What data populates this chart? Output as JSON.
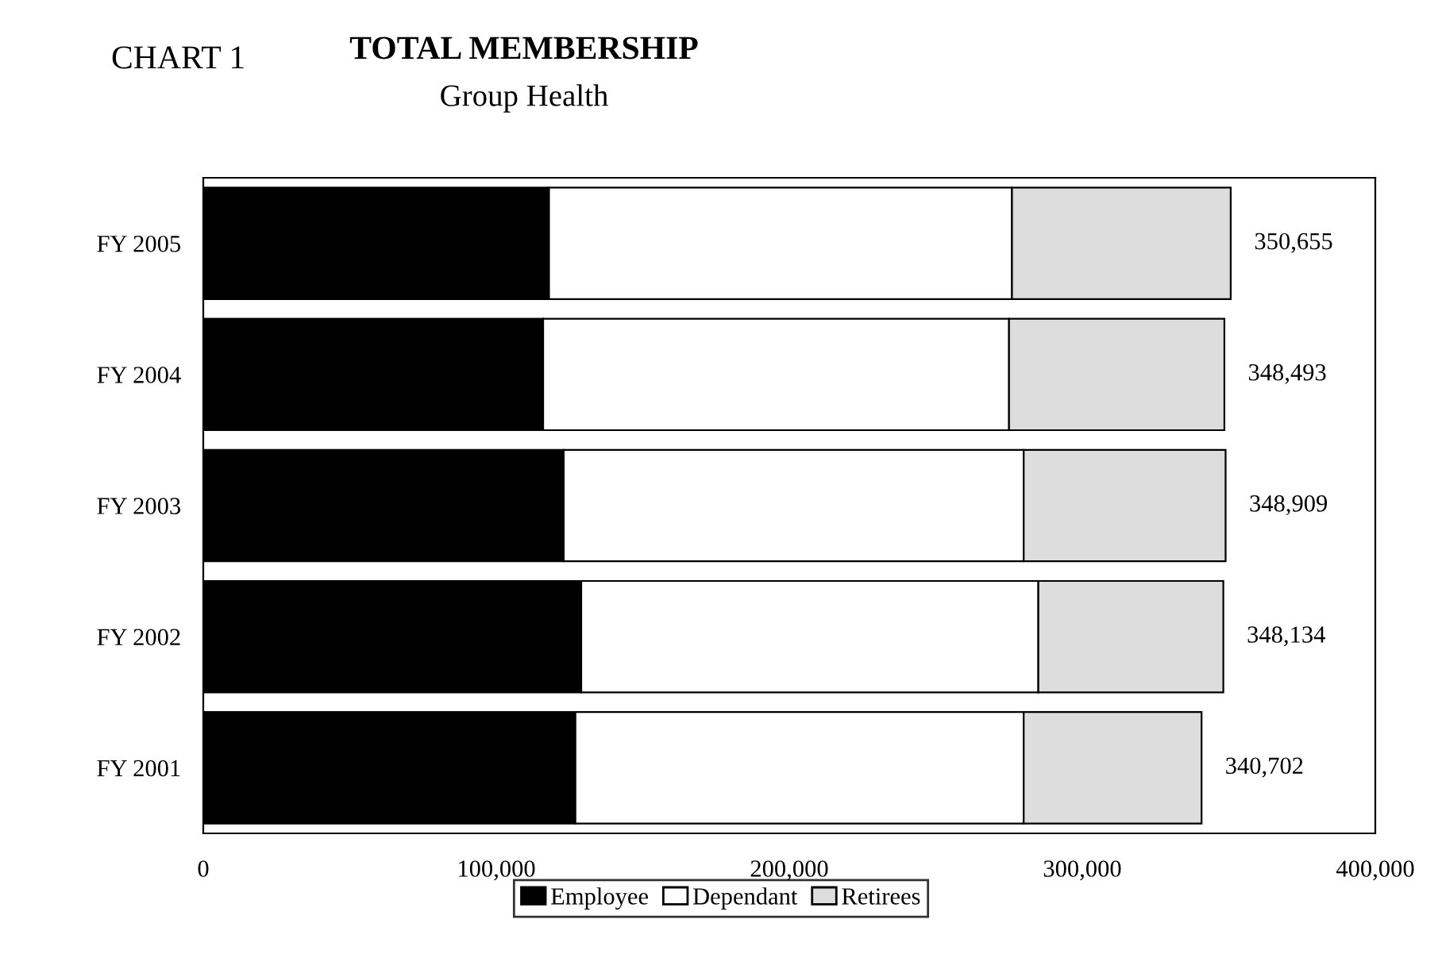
{
  "chart_data": {
    "type": "bar",
    "orientation": "horizontal",
    "stacked": true,
    "title": "TOTAL MEMBERSHIP",
    "subtitle": "Group Health",
    "annotations": [
      "CHART 1"
    ],
    "categories": [
      "FY 2005",
      "FY 2004",
      "FY 2003",
      "FY 2002",
      "FY 2001"
    ],
    "series": [
      {
        "name": "Employee",
        "color": "#000000",
        "values": [
          118000,
          116000,
          123000,
          129000,
          127000
        ]
      },
      {
        "name": "Dependant",
        "color": "#ffffff",
        "values": [
          158000,
          159000,
          157000,
          156000,
          153000
        ]
      },
      {
        "name": "Retirees",
        "color": "#dddddd",
        "values": [
          74655,
          73493,
          68909,
          63134,
          60702
        ]
      }
    ],
    "totals": [
      "350,655",
      "348,493",
      "348,909",
      "348,134",
      "340,702"
    ],
    "xlim": [
      0,
      400000
    ],
    "xticks": [
      0,
      {
        "value": 100000,
        "label": "100,000"
      },
      {
        "value": 200000,
        "label": "200,000"
      },
      {
        "value": 300000,
        "label": "300,000"
      },
      {
        "value": 400000,
        "label": "400,000"
      }
    ],
    "grid": false,
    "legend": "bottom"
  }
}
